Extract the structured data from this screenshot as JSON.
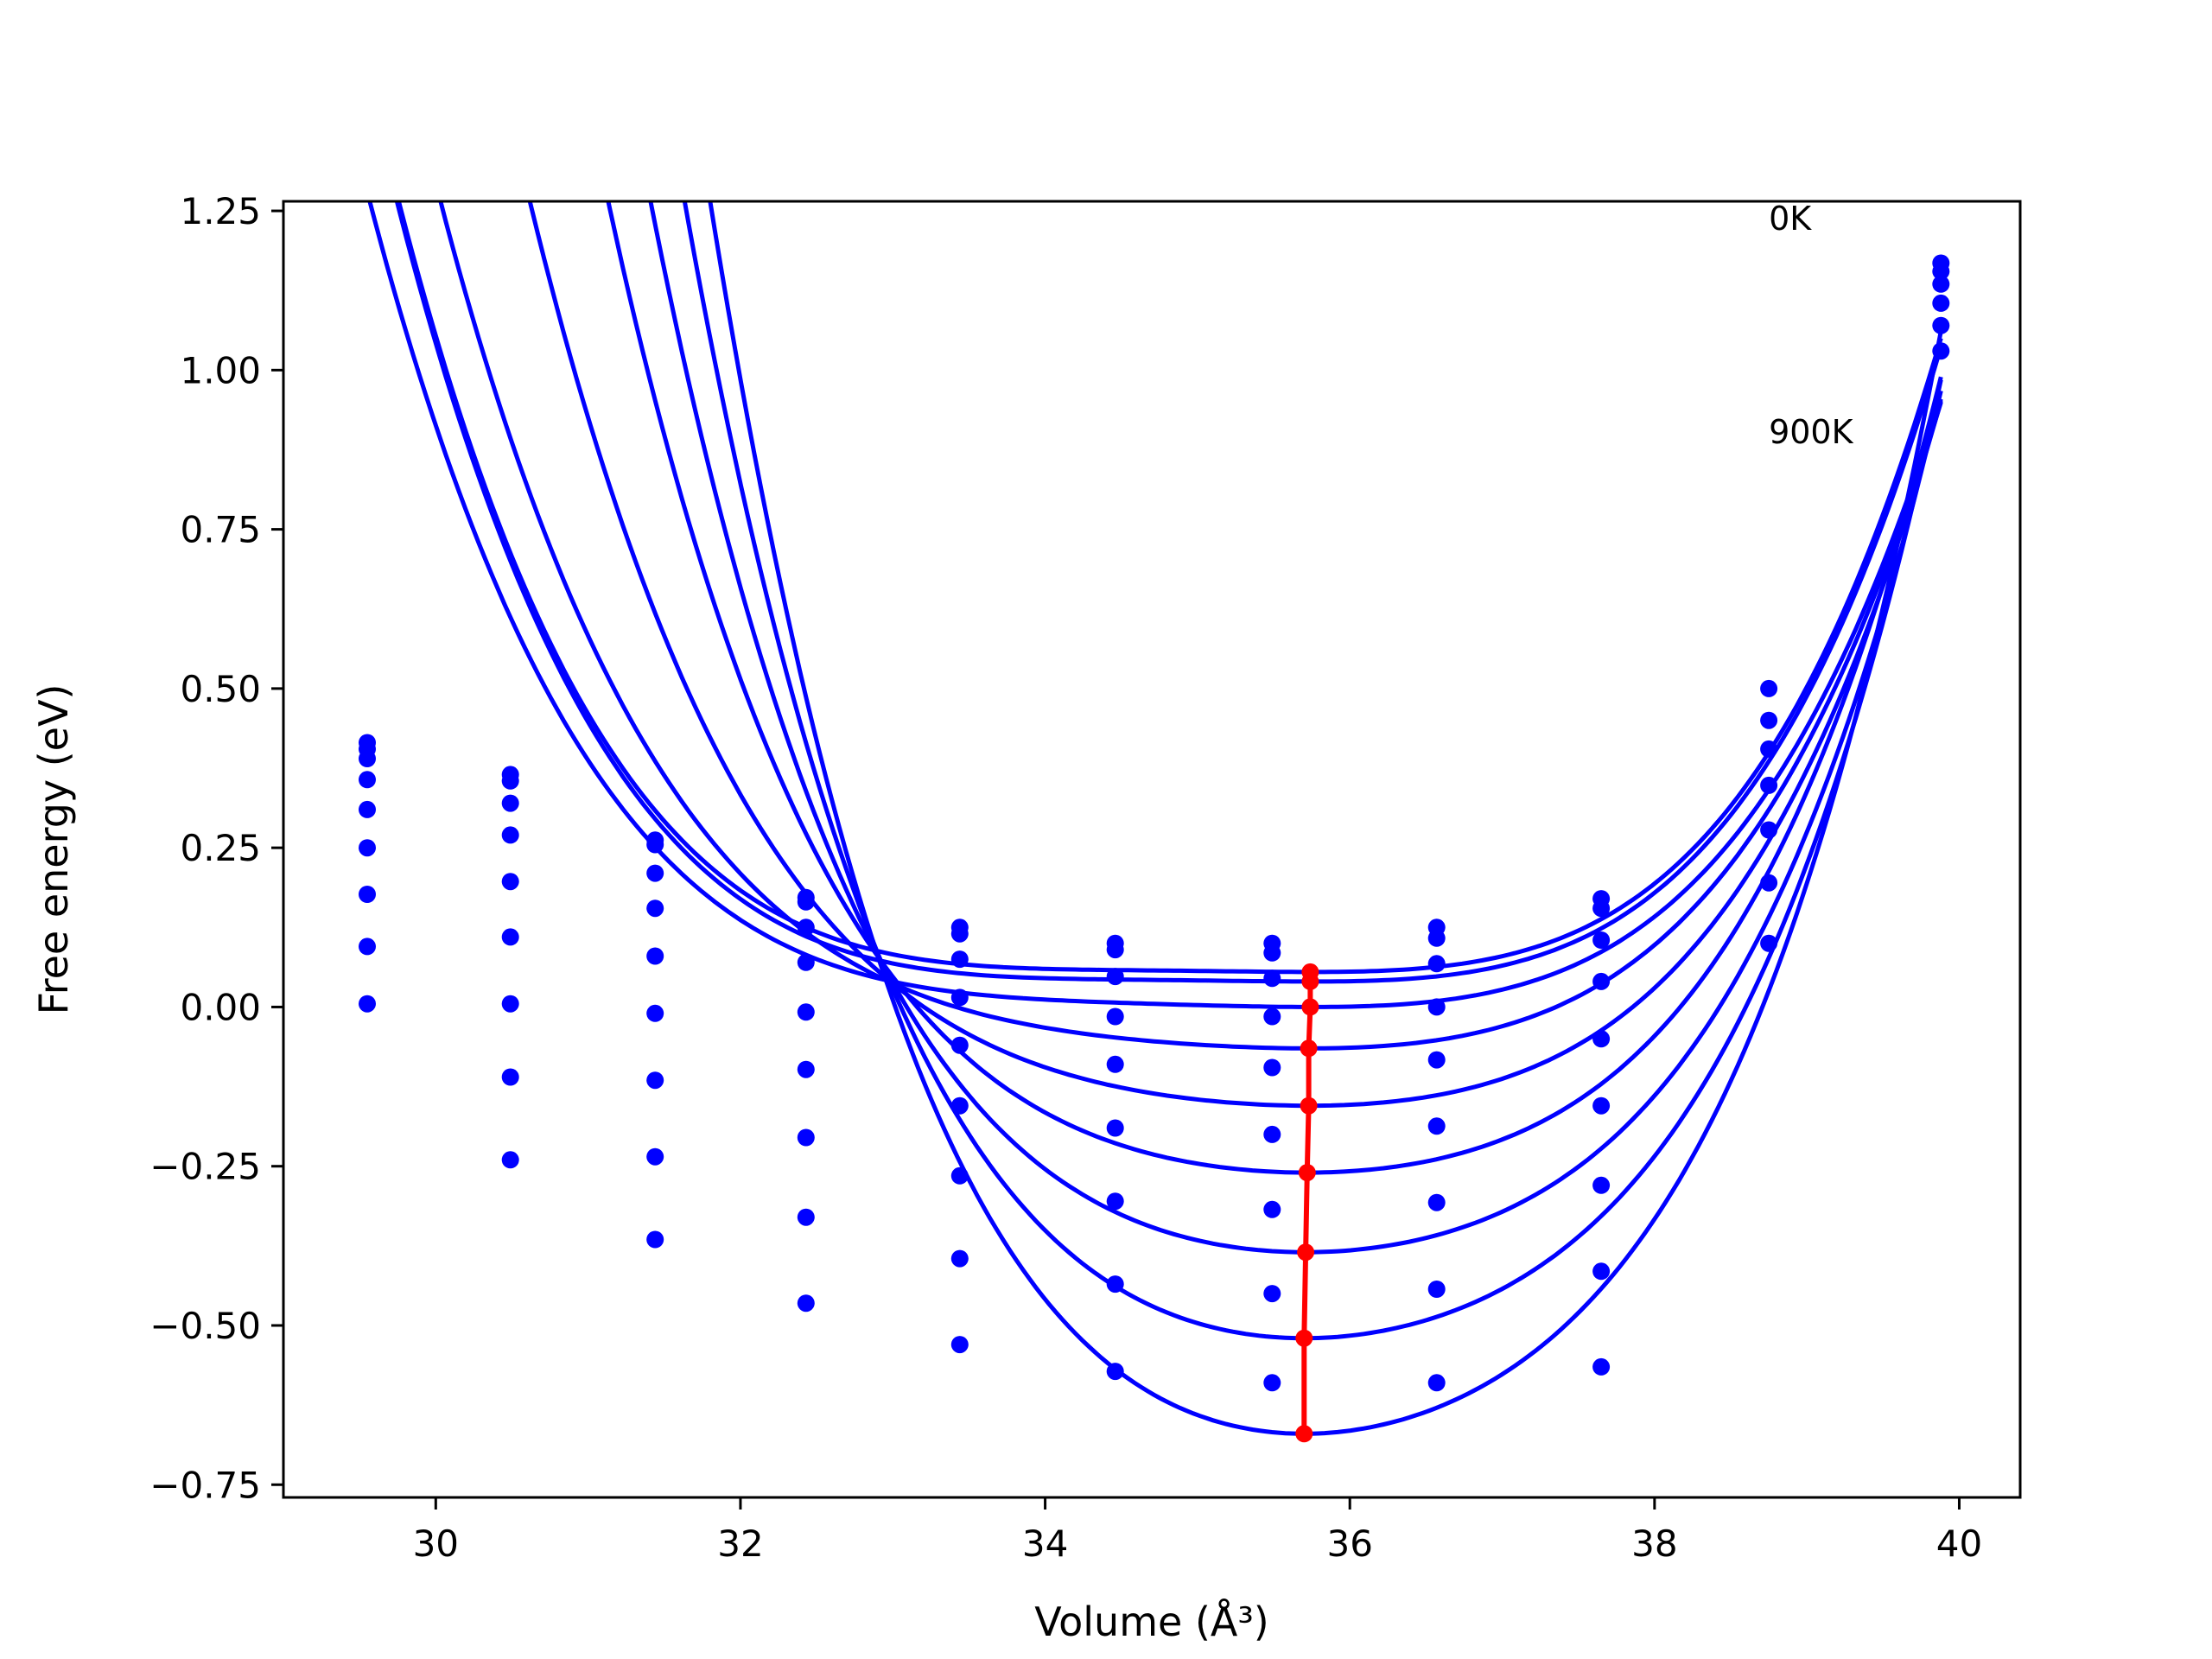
{
  "chart_data": {
    "type": "line",
    "title": "",
    "xlabel": "Volume (Å³)",
    "ylabel": "Free energy (eV)",
    "xlim": [
      29.0,
      40.4
    ],
    "ylim": [
      -0.77,
      1.265
    ],
    "xticks": [
      30,
      32,
      34,
      36,
      38,
      40
    ],
    "xtick_labels": [
      "30",
      "32",
      "34",
      "36",
      "38",
      "40"
    ],
    "yticks": [
      1.25,
      1.0,
      0.75,
      0.5,
      0.25,
      0.0,
      -0.25,
      -0.5,
      -0.75
    ],
    "ytick_labels": [
      "1.25",
      "1.00",
      "0.75",
      "0.50",
      "0.25",
      "0.00",
      "−0.25",
      "−0.50",
      "−0.75"
    ],
    "grid": false,
    "annotations": [
      {
        "text": "0K",
        "x": 38.75,
        "y": 1.22
      },
      {
        "text": "900K",
        "x": 38.75,
        "y": 0.885
      }
    ],
    "colors": {
      "curves": "#0000ff",
      "points": "#0000ff",
      "minimum_path": "#ff0000"
    },
    "x_points": [
      29.55,
      30.49,
      31.44,
      32.43,
      33.44,
      34.46,
      35.49,
      36.57,
      37.65,
      38.75,
      39.88
    ],
    "series": [
      {
        "curve": {
          "emin": 0.055,
          "vmin": 35.75,
          "a": 0.0062,
          "b": 0.0056,
          "c": 0.0017
        },
        "minimum": {
          "x": 35.74,
          "y": 0.055
        },
        "points": [
          0.415,
          0.365,
          0.262,
          0.172,
          0.125,
          0.1,
          0.1,
          0.125,
          0.17,
          0.5,
          1.168
        ]
      },
      {
        "curve": {
          "emin": 0.04,
          "vmin": 35.75,
          "a": 0.0063,
          "b": 0.0056,
          "c": 0.0017
        },
        "minimum": {
          "x": 35.74,
          "y": 0.04
        },
        "points": [
          0.405,
          0.355,
          0.255,
          0.165,
          0.115,
          0.09,
          0.085,
          0.108,
          0.155,
          0.45,
          1.155
        ]
      },
      {
        "curve": {
          "emin": 0.0,
          "vmin": 35.75,
          "a": 0.0085,
          "b": 0.0053,
          "c": 0.0015
        },
        "minimum": {
          "x": 35.74,
          "y": 0.0
        },
        "points": [
          0.39,
          0.32,
          0.21,
          0.125,
          0.075,
          0.048,
          0.045,
          0.068,
          0.105,
          0.405,
          1.135
        ]
      },
      {
        "curve": {
          "emin": -0.065,
          "vmin": 35.73,
          "a": 0.0135,
          "b": 0.0043,
          "c": 0.0016
        },
        "minimum": {
          "x": 35.73,
          "y": -0.065
        },
        "points": [
          0.357,
          0.27,
          0.155,
          0.07,
          0.015,
          -0.015,
          -0.015,
          0.0,
          0.04,
          0.348,
          1.105
        ]
      },
      {
        "curve": {
          "emin": -0.155,
          "vmin": 35.73,
          "a": 0.0195,
          "b": 0.0029,
          "c": 0.0019
        },
        "minimum": {
          "x": 35.73,
          "y": -0.155
        },
        "points": [
          0.31,
          0.197,
          0.08,
          -0.008,
          -0.06,
          -0.09,
          -0.095,
          -0.083,
          -0.05,
          0.278,
          1.07
        ]
      },
      {
        "curve": {
          "emin": -0.26,
          "vmin": 35.72,
          "a": 0.0265,
          "b": 0.001,
          "c": 0.0024
        },
        "minimum": {
          "x": 35.72,
          "y": -0.26
        },
        "points": [
          0.25,
          0.11,
          -0.01,
          -0.098,
          -0.155,
          -0.19,
          -0.2,
          -0.187,
          -0.155,
          0.195,
          1.03
        ]
      },
      {
        "curve": {
          "emin": -0.385,
          "vmin": 35.71,
          "a": 0.035,
          "b": -0.001,
          "c": 0.0027
        },
        "minimum": {
          "x": 35.71,
          "y": -0.385
        },
        "points": [
          0.177,
          0.005,
          -0.115,
          -0.205,
          -0.265,
          -0.305,
          -0.318,
          -0.307,
          -0.28,
          0.1,
          null
        ]
      },
      {
        "curve": {
          "emin": -0.52,
          "vmin": 35.7,
          "a": 0.0445,
          "b": -0.003,
          "c": 0.0031
        },
        "minimum": {
          "x": 35.7,
          "y": -0.52
        },
        "points": [
          0.095,
          -0.11,
          -0.235,
          -0.33,
          -0.395,
          -0.435,
          -0.45,
          -0.443,
          -0.415,
          null,
          null
        ]
      },
      {
        "curve": {
          "emin": -0.67,
          "vmin": 35.7,
          "a": 0.055,
          "b": -0.0045,
          "c": 0.0036
        },
        "minimum": {
          "x": 35.7,
          "y": -0.67
        },
        "points": [
          0.005,
          -0.24,
          -0.365,
          -0.465,
          -0.53,
          -0.572,
          -0.59,
          -0.59,
          -0.565,
          null,
          null
        ]
      }
    ]
  }
}
